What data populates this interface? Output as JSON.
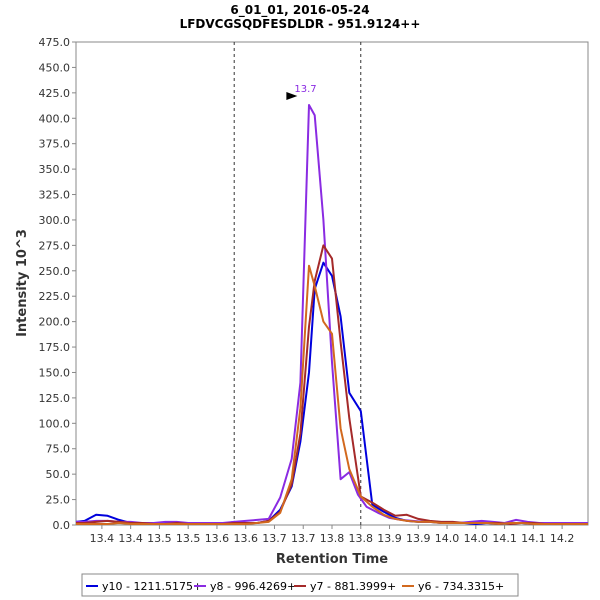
{
  "chart_data": {
    "type": "line",
    "title_line1": "6_01_01, 2016-05-24",
    "title_line2": "LFDVCGSQDFESDLDR - 951.9124++",
    "xlabel": "Retention Time",
    "ylabel": "Intensity 10^3",
    "xlim": [
      13.305,
      14.195
    ],
    "ylim": [
      0,
      475
    ],
    "yticks": [
      0,
      25,
      50,
      75,
      100,
      125,
      150,
      175,
      200,
      225,
      250,
      275,
      300,
      325,
      350,
      375,
      400,
      425,
      450,
      475
    ],
    "ytick_labels": [
      "0.0",
      "25.0",
      "50.0",
      "75.0",
      "100.0",
      "125.0",
      "150.0",
      "175.0",
      "200.0",
      "225.0",
      "250.0",
      "275.0",
      "300.0",
      "325.0",
      "350.0",
      "375.0",
      "400.0",
      "425.0",
      "450.0",
      "475.0"
    ],
    "xticks": [
      13.35,
      13.4,
      13.45,
      13.5,
      13.55,
      13.6,
      13.65,
      13.7,
      13.75,
      13.8,
      13.85,
      13.9,
      13.95,
      14.0,
      14.05,
      14.1,
      14.15
    ],
    "xtick_labels": [
      "13.4",
      "13.4",
      "13.5",
      "13.5",
      "13.6",
      "13.6",
      "13.7",
      "13.7",
      "13.8",
      "13.8",
      "13.9",
      "13.9",
      "14.0",
      "14.0",
      "14.1",
      "14.1",
      "14.2"
    ],
    "integration_bounds": [
      13.58,
      13.8
    ],
    "peak_annotation": {
      "label": "13.7",
      "x": 13.695,
      "y": 413
    },
    "legend_position": "bottom",
    "series": [
      {
        "name": "y10 - 1211.5175+",
        "color": "#0000dd",
        "x": [
          13.305,
          13.32,
          13.34,
          13.36,
          13.38,
          13.4,
          13.42,
          13.44,
          13.46,
          13.48,
          13.5,
          13.52,
          13.54,
          13.56,
          13.58,
          13.6,
          13.62,
          13.64,
          13.66,
          13.68,
          13.695,
          13.71,
          13.72,
          13.735,
          13.75,
          13.765,
          13.78,
          13.8,
          13.82,
          13.84,
          13.86,
          13.88,
          13.9,
          13.92,
          13.94,
          13.96,
          13.98,
          14.0,
          14.02,
          14.04,
          14.06,
          14.08,
          14.1,
          14.12,
          14.14,
          14.16,
          14.18,
          14.195
        ],
        "y": [
          3,
          4,
          10,
          9,
          5,
          2,
          1,
          1,
          2,
          1,
          1,
          1,
          1,
          1,
          3,
          2,
          2,
          4,
          15,
          38,
          82,
          150,
          232,
          258,
          245,
          205,
          130,
          112,
          20,
          13,
          7,
          4,
          3,
          3,
          2,
          2,
          2,
          1,
          2,
          1,
          2,
          2,
          1,
          2,
          2,
          1,
          1,
          1
        ]
      },
      {
        "name": "y8 - 996.4269+",
        "color": "#8a2be2",
        "x": [
          13.305,
          13.32,
          13.34,
          13.36,
          13.38,
          13.4,
          13.42,
          13.44,
          13.46,
          13.48,
          13.5,
          13.52,
          13.54,
          13.56,
          13.58,
          13.6,
          13.62,
          13.64,
          13.66,
          13.68,
          13.695,
          13.71,
          13.72,
          13.735,
          13.75,
          13.765,
          13.78,
          13.795,
          13.81,
          13.83,
          13.85,
          13.87,
          13.89,
          13.91,
          13.93,
          13.95,
          13.97,
          13.99,
          14.01,
          14.03,
          14.05,
          14.07,
          14.09,
          14.11,
          14.13,
          14.15,
          14.17,
          14.195
        ],
        "y": [
          3,
          3,
          4,
          4,
          3,
          3,
          2,
          2,
          3,
          3,
          2,
          2,
          2,
          2,
          3,
          4,
          5,
          6,
          27,
          65,
          140,
          413,
          403,
          300,
          160,
          45,
          52,
          30,
          18,
          12,
          7,
          5,
          4,
          3,
          3,
          2,
          2,
          3,
          4,
          3,
          2,
          5,
          3,
          2,
          2,
          2,
          2,
          2
        ]
      },
      {
        "name": "y7 - 881.3999+",
        "color": "#a52a2a",
        "x": [
          13.305,
          13.32,
          13.34,
          13.36,
          13.38,
          13.4,
          13.42,
          13.44,
          13.46,
          13.48,
          13.5,
          13.52,
          13.54,
          13.56,
          13.58,
          13.6,
          13.62,
          13.64,
          13.66,
          13.68,
          13.695,
          13.71,
          13.72,
          13.735,
          13.75,
          13.765,
          13.78,
          13.8,
          13.82,
          13.84,
          13.86,
          13.88,
          13.9,
          13.92,
          13.94,
          13.96,
          13.98,
          14.0,
          14.02,
          14.04,
          14.06,
          14.08,
          14.1,
          14.12,
          14.14,
          14.16,
          14.18,
          14.195
        ],
        "y": [
          2,
          2,
          3,
          4,
          3,
          2,
          2,
          1,
          1,
          2,
          1,
          1,
          1,
          1,
          2,
          2,
          2,
          4,
          13,
          40,
          90,
          195,
          240,
          275,
          262,
          180,
          105,
          28,
          22,
          15,
          9,
          10,
          6,
          4,
          3,
          3,
          2,
          2,
          2,
          2,
          1,
          2,
          2,
          1,
          1,
          1,
          1,
          1
        ]
      },
      {
        "name": "y6 - 734.3315+",
        "color": "#d2691e",
        "x": [
          13.305,
          13.32,
          13.34,
          13.36,
          13.38,
          13.4,
          13.42,
          13.44,
          13.46,
          13.48,
          13.5,
          13.52,
          13.54,
          13.56,
          13.58,
          13.6,
          13.62,
          13.64,
          13.66,
          13.68,
          13.695,
          13.71,
          13.72,
          13.735,
          13.75,
          13.765,
          13.78,
          13.8,
          13.82,
          13.84,
          13.86,
          13.88,
          13.9,
          13.92,
          13.94,
          13.96,
          13.98,
          14.0,
          14.02,
          14.04,
          14.06,
          14.08,
          14.1,
          14.12,
          14.14,
          14.16,
          14.18,
          14.195
        ],
        "y": [
          1,
          1,
          1,
          1,
          2,
          1,
          1,
          1,
          1,
          1,
          1,
          1,
          1,
          1,
          1,
          1,
          2,
          3,
          12,
          45,
          115,
          255,
          235,
          200,
          188,
          95,
          55,
          28,
          18,
          10,
          6,
          4,
          3,
          3,
          2,
          2,
          2,
          2,
          2,
          1,
          2,
          2,
          1,
          1,
          1,
          1,
          1,
          1
        ]
      }
    ]
  }
}
